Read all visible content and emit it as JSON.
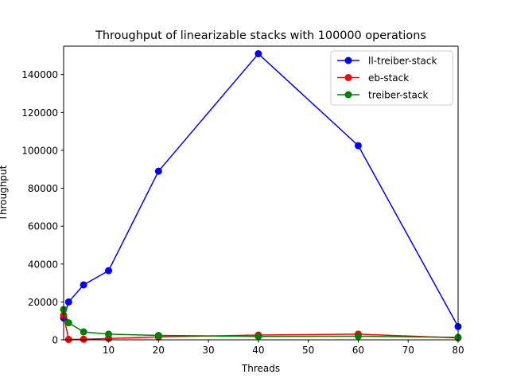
{
  "chart_data": {
    "type": "line",
    "title": "Throughput of linearizable stacks with 100000 operations",
    "xlabel": "Threads",
    "ylabel": "Throughput",
    "xlim": [
      1,
      80
    ],
    "ylim": [
      0,
      155000
    ],
    "xticks": [
      10,
      20,
      30,
      40,
      50,
      60,
      70,
      80
    ],
    "yticks": [
      0,
      20000,
      40000,
      60000,
      80000,
      100000,
      120000,
      140000
    ],
    "legend_position": "upper right",
    "grid": false,
    "series": [
      {
        "name": "ll-treiber-stack",
        "color": "#0000ff",
        "x": [
          1,
          2,
          5,
          10,
          20,
          40,
          60,
          80
        ],
        "y": [
          11500,
          20000,
          29000,
          36500,
          89000,
          151000,
          102500,
          7000
        ]
      },
      {
        "name": "eb-stack",
        "color": "#ff0000",
        "x": [
          1,
          2,
          5,
          10,
          20,
          40,
          60,
          80
        ],
        "y": [
          13000,
          200,
          300,
          700,
          1500,
          2500,
          3000,
          1000
        ]
      },
      {
        "name": "treiber-stack",
        "color": "#008000",
        "x": [
          1,
          2,
          5,
          10,
          20,
          40,
          60,
          80
        ],
        "y": [
          16000,
          9000,
          4200,
          3000,
          2300,
          1800,
          1900,
          1300
        ]
      }
    ]
  }
}
